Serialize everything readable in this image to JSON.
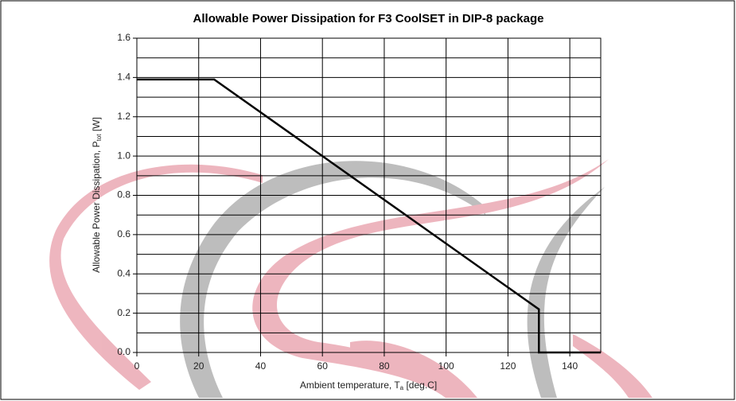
{
  "chart_data": {
    "type": "line",
    "title": "Allowable Power Dissipation for F3 CoolSET in DIP-8 package",
    "xlabel": {
      "text": "Ambient temperature, T",
      "sub": "a",
      "unit": " [deg.C]"
    },
    "ylabel": {
      "text": "Allowable Power Dissipation, P",
      "sub": "tot",
      "unit": " [W]"
    },
    "x": [
      0,
      25,
      130,
      130,
      150
    ],
    "series": [
      {
        "color": "#000000",
        "values": [
          1.39,
          1.39,
          0.22,
          0,
          0
        ]
      }
    ],
    "xlim": [
      0,
      150
    ],
    "ylim": [
      0,
      1.6
    ],
    "xticks": [
      0,
      20,
      40,
      60,
      80,
      100,
      120,
      140
    ],
    "yticks": [
      {
        "value": 0,
        "label": "0.0"
      },
      {
        "value": 0.2,
        "label": "0.2"
      },
      {
        "value": 0.4,
        "label": "0.4"
      },
      {
        "value": 0.6,
        "label": "0.6"
      },
      {
        "value": 0.8,
        "label": "0.8"
      },
      {
        "value": 1,
        "label": "1.0"
      },
      {
        "value": 1.2,
        "label": "1.2"
      },
      {
        "value": 1.4,
        "label": "1.4"
      },
      {
        "value": 1.6,
        "label": "1.6"
      }
    ],
    "y_minor_grid": [
      0.1,
      0.3,
      0.5,
      0.7,
      0.9,
      1.1,
      1.3,
      1.5
    ],
    "grid": true
  }
}
